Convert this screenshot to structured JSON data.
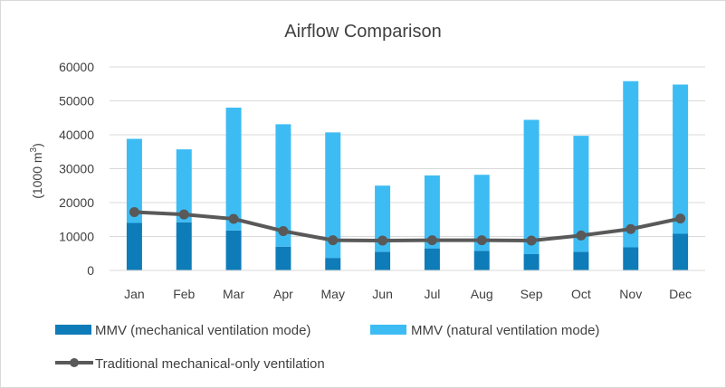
{
  "chart_data": {
    "type": "bar",
    "subtype": "stacked-bar-with-line",
    "title": "Airflow Comparison",
    "ylabel": "(1000 m³)",
    "ylabel_parts": {
      "prefix": "(1000 m",
      "sup": "3",
      "suffix": ")"
    },
    "ylim": [
      0,
      60000
    ],
    "yticks": [
      0,
      10000,
      20000,
      30000,
      40000,
      50000,
      60000
    ],
    "categories": [
      "Jan",
      "Feb",
      "Mar",
      "Apr",
      "May",
      "Jun",
      "Jul",
      "Aug",
      "Sep",
      "Oct",
      "Nov",
      "Dec"
    ],
    "series": [
      {
        "name": "MMV (mechanical ventilation mode)",
        "kind": "bar",
        "color": "#0E7CB8",
        "values": [
          14000,
          14200,
          11800,
          7000,
          3700,
          5500,
          6500,
          5800,
          4800,
          5500,
          6800,
          10800
        ]
      },
      {
        "name": "MMV (natural ventilation mode)",
        "kind": "bar",
        "color": "#3DBCF4",
        "values": [
          24800,
          21500,
          36200,
          36100,
          37000,
          19500,
          21500,
          22400,
          39600,
          34200,
          49000,
          44000
        ]
      },
      {
        "name": "Traditional mechanical-only ventilation",
        "kind": "line",
        "color": "#595959",
        "values": [
          17200,
          16500,
          15200,
          11600,
          8900,
          8800,
          8900,
          8900,
          8800,
          10300,
          12200,
          15300
        ]
      }
    ],
    "grid": true,
    "legend": "bottom"
  }
}
